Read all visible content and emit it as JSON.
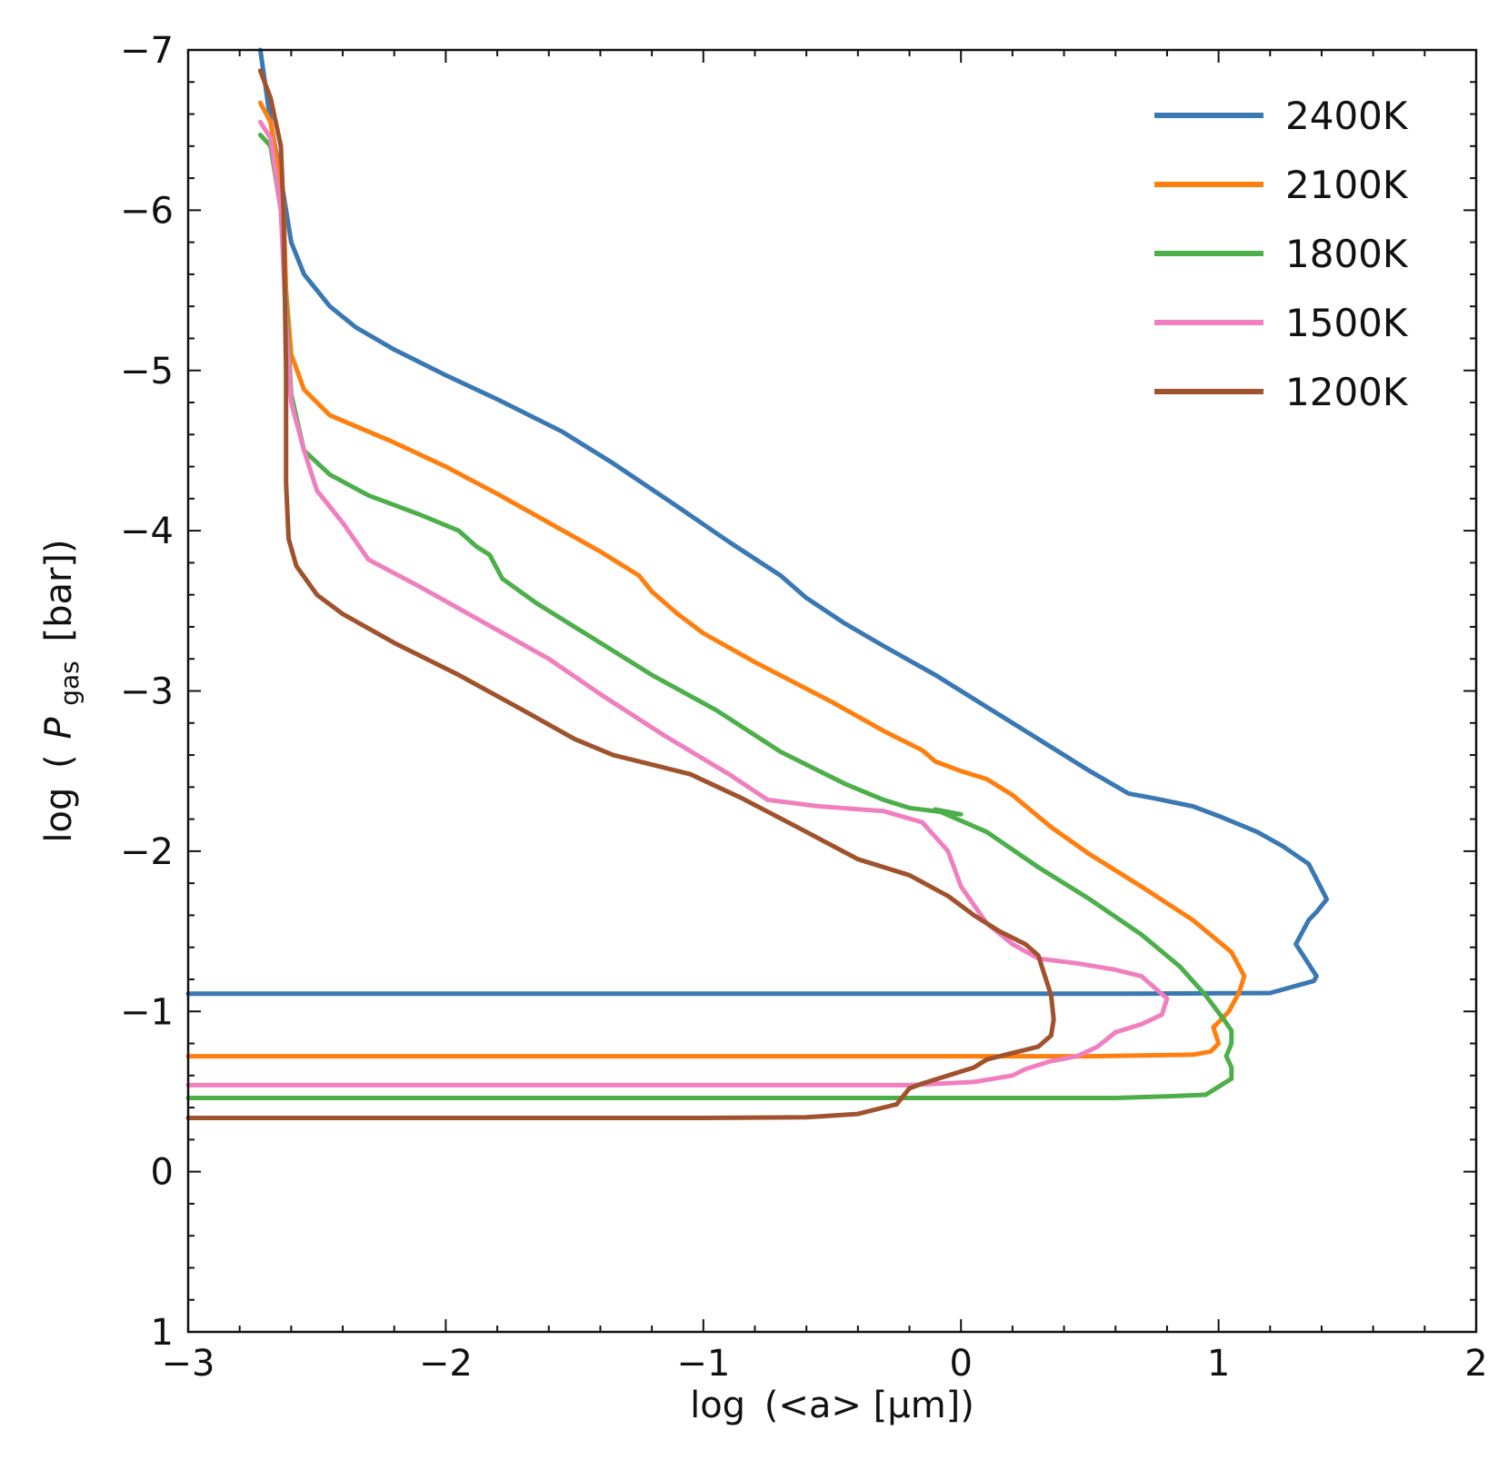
{
  "chart_data": {
    "type": "line",
    "title": "",
    "xlabel_prefix": "log",
    "xlabel_inner": "(<a> [μm])",
    "ylabel_prefix": "log",
    "ylabel_symbol": "P",
    "ylabel_subscript": "gas",
    "ylabel_unit": "[bar])",
    "xlim": [
      -3,
      2
    ],
    "ylim": [
      1,
      -7
    ],
    "x_ticks": [
      -3,
      -2,
      -1,
      0,
      1,
      2
    ],
    "x_tick_labels": [
      "−3",
      "−2",
      "−1",
      "0",
      "1",
      "2"
    ],
    "y_ticks": [
      1,
      0,
      -1,
      -2,
      -3,
      -4,
      -5,
      -6,
      -7
    ],
    "y_tick_labels": [
      "1",
      "0",
      "−1",
      "−2",
      "−3",
      "−4",
      "−5",
      "−6",
      "−7"
    ],
    "legend_position": "top-right",
    "grid": false,
    "series": [
      {
        "name": "2400K",
        "color": "#3a78b4",
        "points": [
          [
            -2.72,
            -7.0
          ],
          [
            -2.68,
            -6.55
          ],
          [
            -2.64,
            -6.2
          ],
          [
            -2.62,
            -6.0
          ],
          [
            -2.6,
            -5.8
          ],
          [
            -2.55,
            -5.6
          ],
          [
            -2.45,
            -5.4
          ],
          [
            -2.35,
            -5.27
          ],
          [
            -2.2,
            -5.13
          ],
          [
            -2.0,
            -4.97
          ],
          [
            -1.8,
            -4.82
          ],
          [
            -1.55,
            -4.62
          ],
          [
            -1.35,
            -4.42
          ],
          [
            -1.1,
            -4.15
          ],
          [
            -0.9,
            -3.93
          ],
          [
            -0.7,
            -3.72
          ],
          [
            -0.6,
            -3.58
          ],
          [
            -0.45,
            -3.42
          ],
          [
            -0.3,
            -3.28
          ],
          [
            -0.1,
            -3.1
          ],
          [
            0.1,
            -2.9
          ],
          [
            0.3,
            -2.7
          ],
          [
            0.5,
            -2.5
          ],
          [
            0.65,
            -2.36
          ],
          [
            0.75,
            -2.33
          ],
          [
            0.9,
            -2.28
          ],
          [
            1.0,
            -2.22
          ],
          [
            1.15,
            -2.12
          ],
          [
            1.25,
            -2.03
          ],
          [
            1.35,
            -1.92
          ],
          [
            1.42,
            -1.7
          ],
          [
            1.38,
            -1.62
          ],
          [
            1.35,
            -1.57
          ],
          [
            1.3,
            -1.42
          ],
          [
            1.38,
            -1.22
          ],
          [
            1.37,
            -1.19
          ],
          [
            1.2,
            -1.115
          ],
          [
            0.6,
            -1.11
          ],
          [
            0,
            -1.11
          ],
          [
            -1,
            -1.11
          ],
          [
            -2,
            -1.11
          ],
          [
            -3,
            -1.11
          ]
        ]
      },
      {
        "name": "2100K",
        "color": "#ff7f0e",
        "points": [
          [
            -2.72,
            -6.67
          ],
          [
            -2.68,
            -6.55
          ],
          [
            -2.63,
            -6.05
          ],
          [
            -2.62,
            -5.5
          ],
          [
            -2.6,
            -5.1
          ],
          [
            -2.55,
            -4.88
          ],
          [
            -2.45,
            -4.72
          ],
          [
            -2.2,
            -4.55
          ],
          [
            -2.0,
            -4.4
          ],
          [
            -1.8,
            -4.23
          ],
          [
            -1.6,
            -4.05
          ],
          [
            -1.4,
            -3.87
          ],
          [
            -1.25,
            -3.72
          ],
          [
            -1.2,
            -3.62
          ],
          [
            -1.1,
            -3.48
          ],
          [
            -1.0,
            -3.36
          ],
          [
            -0.8,
            -3.18
          ],
          [
            -0.5,
            -2.93
          ],
          [
            -0.3,
            -2.75
          ],
          [
            -0.15,
            -2.63
          ],
          [
            -0.1,
            -2.56
          ],
          [
            0.0,
            -2.5
          ],
          [
            0.1,
            -2.45
          ],
          [
            0.2,
            -2.35
          ],
          [
            0.35,
            -2.15
          ],
          [
            0.5,
            -1.98
          ],
          [
            0.7,
            -1.78
          ],
          [
            0.9,
            -1.57
          ],
          [
            1.05,
            -1.37
          ],
          [
            1.1,
            -1.22
          ],
          [
            1.08,
            -1.12
          ],
          [
            1.04,
            -1.0
          ],
          [
            0.98,
            -0.9
          ],
          [
            1.0,
            -0.8
          ],
          [
            0.97,
            -0.75
          ],
          [
            0.9,
            -0.73
          ],
          [
            0.5,
            -0.72
          ],
          [
            0,
            -0.72
          ],
          [
            -1,
            -0.72
          ],
          [
            -2,
            -0.72
          ],
          [
            -3,
            -0.72
          ]
        ]
      },
      {
        "name": "1800K",
        "color": "#4caf4a",
        "points": [
          [
            -2.72,
            -6.47
          ],
          [
            -2.68,
            -6.4
          ],
          [
            -2.64,
            -6.0
          ],
          [
            -2.62,
            -5.4
          ],
          [
            -2.6,
            -4.85
          ],
          [
            -2.55,
            -4.5
          ],
          [
            -2.45,
            -4.35
          ],
          [
            -2.3,
            -4.22
          ],
          [
            -2.1,
            -4.1
          ],
          [
            -1.95,
            -4.0
          ],
          [
            -1.88,
            -3.9
          ],
          [
            -1.83,
            -3.85
          ],
          [
            -1.78,
            -3.7
          ],
          [
            -1.65,
            -3.55
          ],
          [
            -1.45,
            -3.35
          ],
          [
            -1.2,
            -3.1
          ],
          [
            -0.95,
            -2.88
          ],
          [
            -0.7,
            -2.62
          ],
          [
            -0.45,
            -2.42
          ],
          [
            -0.3,
            -2.32
          ],
          [
            -0.2,
            -2.27
          ],
          [
            0.0,
            -2.23
          ],
          [
            -0.1,
            -2.26
          ],
          [
            0.1,
            -2.12
          ],
          [
            0.3,
            -1.9
          ],
          [
            0.5,
            -1.7
          ],
          [
            0.7,
            -1.48
          ],
          [
            0.85,
            -1.28
          ],
          [
            0.95,
            -1.1
          ],
          [
            1.02,
            -0.95
          ],
          [
            1.05,
            -0.88
          ],
          [
            1.05,
            -0.8
          ],
          [
            1.03,
            -0.72
          ],
          [
            1.05,
            -0.65
          ],
          [
            1.05,
            -0.58
          ],
          [
            0.95,
            -0.48
          ],
          [
            0.8,
            -0.47
          ],
          [
            0.6,
            -0.46
          ],
          [
            0,
            -0.46
          ],
          [
            -1,
            -0.46
          ],
          [
            -2,
            -0.46
          ],
          [
            -3,
            -0.46
          ]
        ]
      },
      {
        "name": "1500K",
        "color": "#f07fc0",
        "points": [
          [
            -2.72,
            -6.55
          ],
          [
            -2.68,
            -6.45
          ],
          [
            -2.64,
            -6.0
          ],
          [
            -2.62,
            -5.3
          ],
          [
            -2.6,
            -4.8
          ],
          [
            -2.55,
            -4.5
          ],
          [
            -2.5,
            -4.25
          ],
          [
            -2.4,
            -4.05
          ],
          [
            -2.3,
            -3.82
          ],
          [
            -2.1,
            -3.65
          ],
          [
            -1.9,
            -3.47
          ],
          [
            -1.6,
            -3.2
          ],
          [
            -1.4,
            -2.98
          ],
          [
            -1.15,
            -2.72
          ],
          [
            -0.9,
            -2.48
          ],
          [
            -0.75,
            -2.32
          ],
          [
            -0.55,
            -2.28
          ],
          [
            -0.3,
            -2.25
          ],
          [
            -0.15,
            -2.18
          ],
          [
            -0.05,
            -2.0
          ],
          [
            0.0,
            -1.78
          ],
          [
            0.1,
            -1.55
          ],
          [
            0.2,
            -1.42
          ],
          [
            0.3,
            -1.33
          ],
          [
            0.45,
            -1.3
          ],
          [
            0.6,
            -1.26
          ],
          [
            0.7,
            -1.22
          ],
          [
            0.8,
            -1.08
          ],
          [
            0.78,
            -0.98
          ],
          [
            0.7,
            -0.92
          ],
          [
            0.6,
            -0.87
          ],
          [
            0.53,
            -0.78
          ],
          [
            0.45,
            -0.72
          ],
          [
            0.35,
            -0.69
          ],
          [
            0.25,
            -0.64
          ],
          [
            0.2,
            -0.6
          ],
          [
            0.05,
            -0.56
          ],
          [
            -0.2,
            -0.54
          ],
          [
            -0.5,
            -0.54
          ],
          [
            -1,
            -0.54
          ],
          [
            -2,
            -0.54
          ],
          [
            -3,
            -0.54
          ]
        ]
      },
      {
        "name": "1200K",
        "color": "#a0522d",
        "points": [
          [
            -2.72,
            -6.87
          ],
          [
            -2.68,
            -6.7
          ],
          [
            -2.64,
            -6.4
          ],
          [
            -2.63,
            -6.0
          ],
          [
            -2.62,
            -5.0
          ],
          [
            -2.62,
            -4.3
          ],
          [
            -2.61,
            -3.95
          ],
          [
            -2.58,
            -3.78
          ],
          [
            -2.5,
            -3.6
          ],
          [
            -2.4,
            -3.48
          ],
          [
            -2.2,
            -3.3
          ],
          [
            -1.95,
            -3.1
          ],
          [
            -1.7,
            -2.88
          ],
          [
            -1.5,
            -2.7
          ],
          [
            -1.35,
            -2.6
          ],
          [
            -1.2,
            -2.54
          ],
          [
            -1.05,
            -2.48
          ],
          [
            -0.85,
            -2.33
          ],
          [
            -0.6,
            -2.12
          ],
          [
            -0.4,
            -1.95
          ],
          [
            -0.2,
            -1.85
          ],
          [
            -0.05,
            -1.72
          ],
          [
            0.05,
            -1.6
          ],
          [
            0.15,
            -1.5
          ],
          [
            0.25,
            -1.42
          ],
          [
            0.3,
            -1.35
          ],
          [
            0.32,
            -1.25
          ],
          [
            0.35,
            -1.1
          ],
          [
            0.36,
            -0.95
          ],
          [
            0.35,
            -0.85
          ],
          [
            0.3,
            -0.78
          ],
          [
            0.2,
            -0.74
          ],
          [
            0.1,
            -0.7
          ],
          [
            0.05,
            -0.65
          ],
          [
            -0.05,
            -0.6
          ],
          [
            -0.15,
            -0.55
          ],
          [
            -0.2,
            -0.52
          ],
          [
            -0.25,
            -0.42
          ],
          [
            -0.4,
            -0.36
          ],
          [
            -0.6,
            -0.34
          ],
          [
            -1,
            -0.335
          ],
          [
            -2,
            -0.335
          ],
          [
            -3,
            -0.335
          ]
        ]
      }
    ]
  }
}
